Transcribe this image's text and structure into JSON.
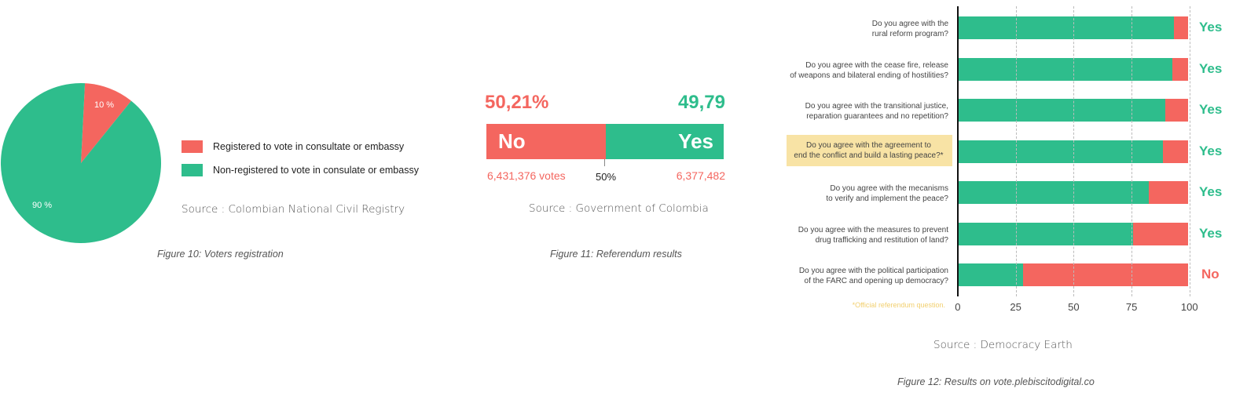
{
  "colors": {
    "red": "#f4665f",
    "green": "#2ebd8c",
    "highlight": "#f8e3a5",
    "note": "#f2cf6e"
  },
  "fig10": {
    "chart_data": {
      "type": "pie",
      "slices": [
        {
          "label": "Registered to vote in consultate or embassy",
          "value": 10,
          "display": "10 %",
          "color": "#f4665f"
        },
        {
          "label": "Non-registered to vote in consulate  or embassy",
          "value": 90,
          "display": "90 %",
          "color": "#2ebd8c"
        }
      ],
      "legend_position": "right"
    },
    "legend": [
      {
        "label": "Registered to vote in consultate or embassy"
      },
      {
        "label": "Non-registered to vote in consulate  or embassy"
      }
    ],
    "source": "Source : Colombian National Civil Registry",
    "caption": "Figure 10: Voters registration"
  },
  "fig11": {
    "chart_data": {
      "type": "bar",
      "orientation": "horizontal-stacked",
      "series": [
        {
          "name": "No",
          "value": 50.21,
          "percent_label": "50,21%",
          "votes_label": "6,431,376 votes"
        },
        {
          "name": "Yes",
          "value": 49.79,
          "percent_label": "49,79",
          "votes_label": "6,377,482"
        }
      ],
      "midline_label": "50%"
    },
    "source": "Source : Government of Colombia",
    "caption": "Figure 11: Referendum results"
  },
  "fig12": {
    "chart_data": {
      "type": "bar",
      "orientation": "horizontal-stacked",
      "xlim": [
        0,
        100
      ],
      "x_ticks": [
        "0",
        "25",
        "50",
        "75",
        "100"
      ],
      "grid": true,
      "questions": [
        {
          "line1": "Do you agree with the",
          "line2": "rural reform program?",
          "yes": 94,
          "result": "Yes",
          "highlight": false
        },
        {
          "line1": "Do you agree with the cease fire, release",
          "line2": "of weapons and bilateral ending of hostilities?",
          "yes": 93,
          "result": "Yes",
          "highlight": false
        },
        {
          "line1": "Do you agree with the transitional justice,",
          "line2": "reparation guarantees and no repetition?",
          "yes": 90,
          "result": "Yes",
          "highlight": false
        },
        {
          "line1": "Do you agree with the agreement to",
          "line2": "end the conflict and build a lasting peace?*",
          "yes": 89,
          "result": "Yes",
          "highlight": true
        },
        {
          "line1": "Do you agree with the mecanisms",
          "line2": "to verify and implement the peace?",
          "yes": 83,
          "result": "Yes",
          "highlight": false
        },
        {
          "line1": "Do you agree with the measures to prevent",
          "line2": "drug trafficking and restitution of land?",
          "yes": 76,
          "result": "Yes",
          "highlight": false
        },
        {
          "line1": "Do you agree with the political participation",
          "line2": "of the FARC and opening up democracy?",
          "yes": 28,
          "result": "No",
          "highlight": false
        }
      ]
    },
    "note": "*Official referendum question.",
    "source": "Source : Democracy Earth",
    "caption": "Figure 12: Results on vote.plebiscitodigital.co"
  }
}
